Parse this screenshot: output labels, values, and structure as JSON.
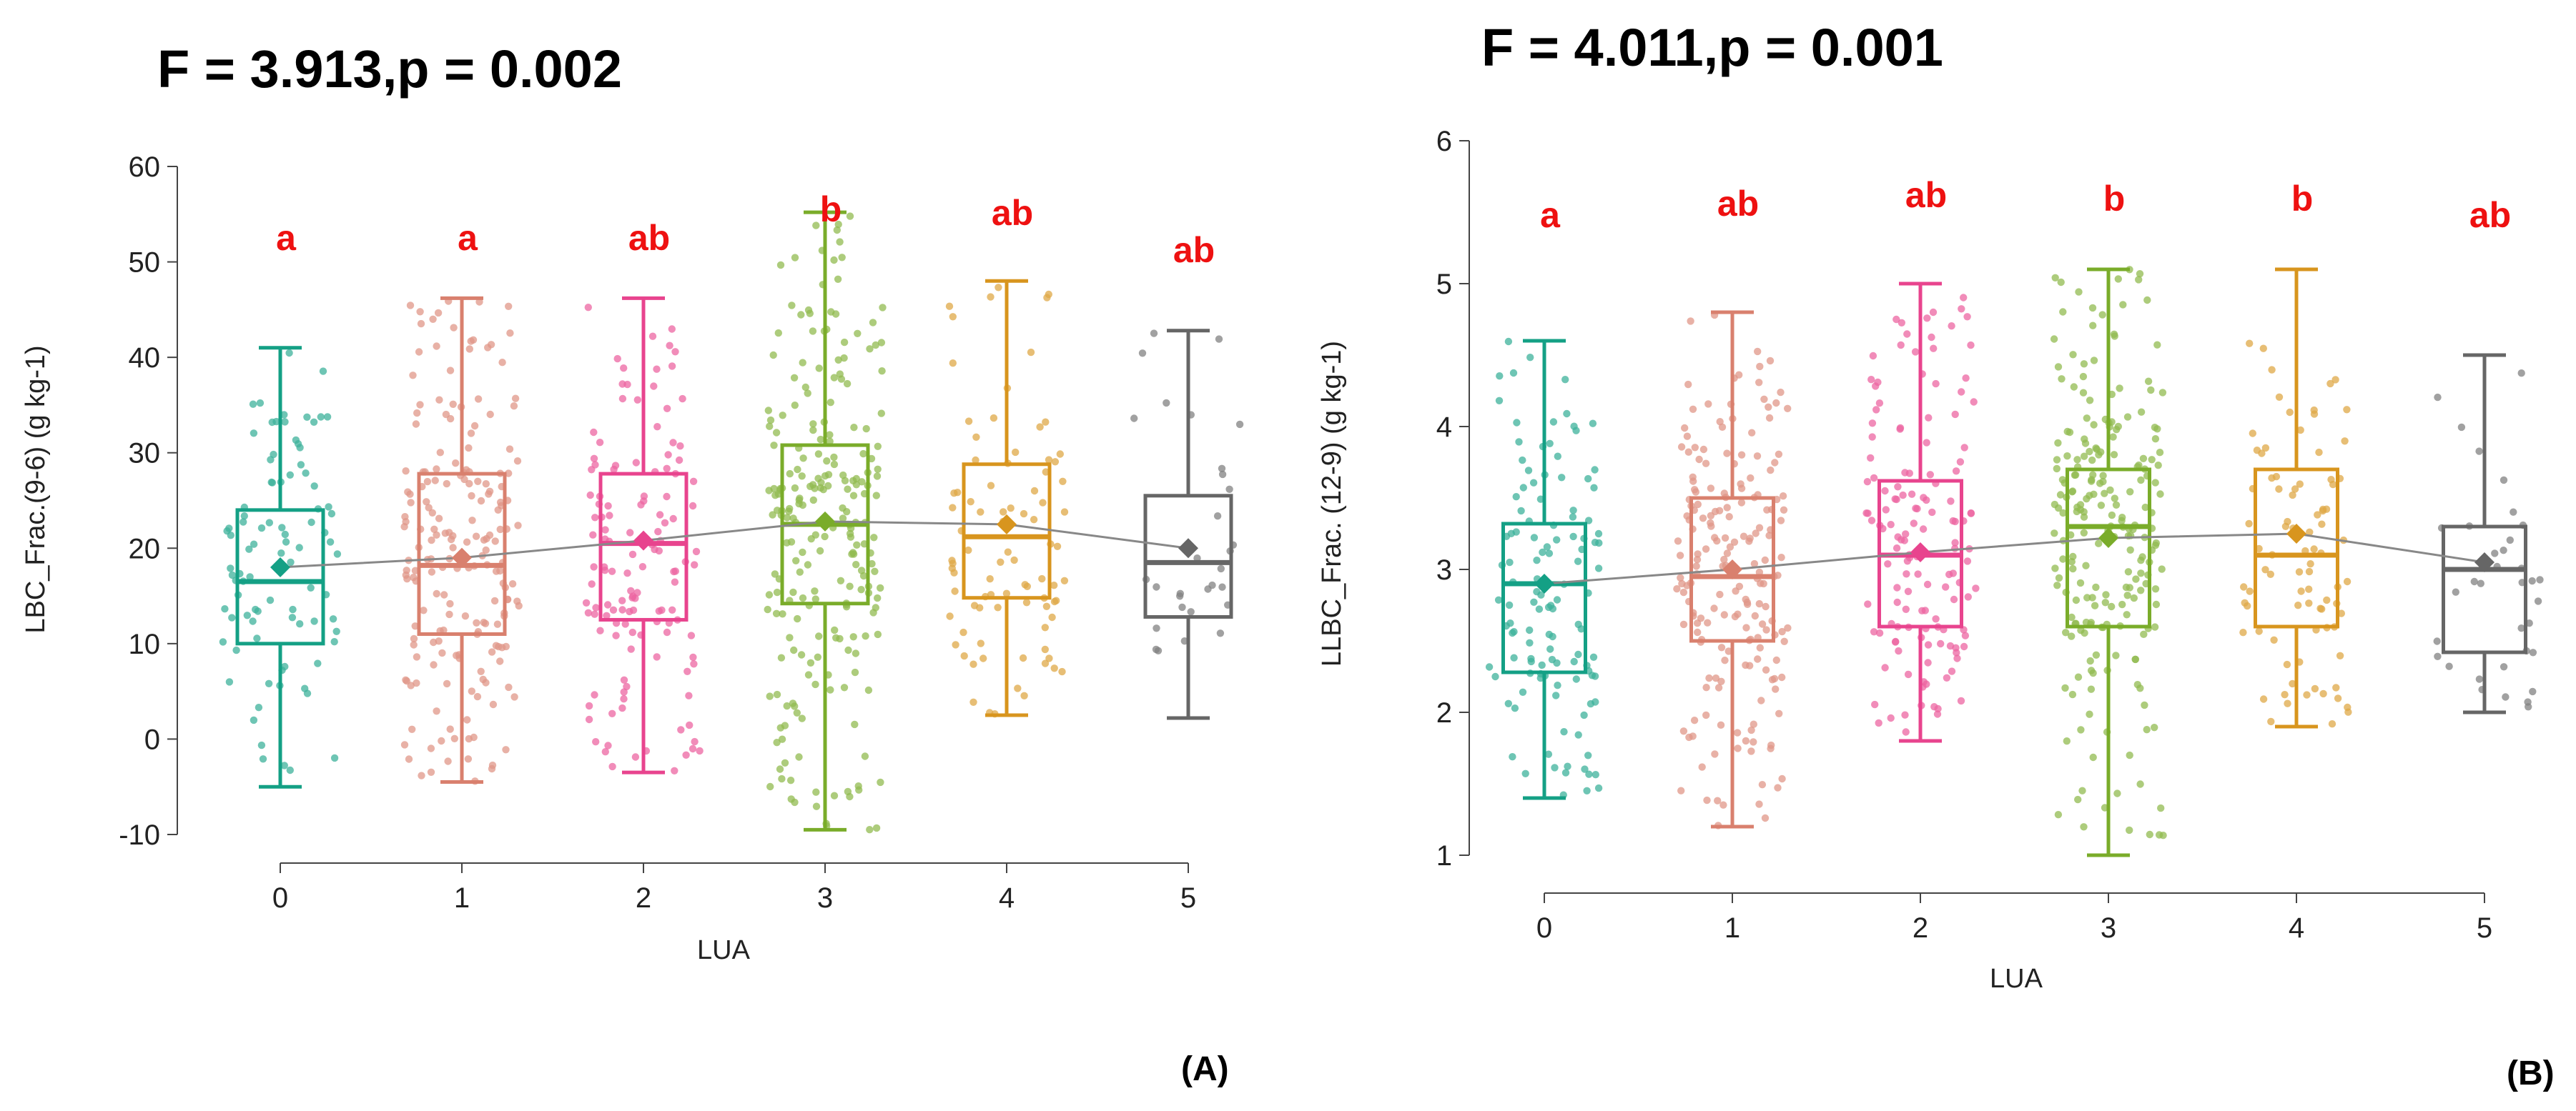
{
  "chart_data": [
    {
      "type": "box",
      "panel_label": "(A)",
      "title": "F = 3.913,p = 0.002",
      "xlabel": "LUA",
      "ylabel": "LBC_Frac.(9-6) (g kg-1)",
      "ylim": [
        -10,
        60
      ],
      "yticks": [
        "-10",
        "0",
        "10",
        "20",
        "30",
        "40",
        "50",
        "60"
      ],
      "ytick_values": [
        -10,
        0,
        10,
        20,
        30,
        40,
        50,
        60
      ],
      "categories": [
        "0",
        "1",
        "2",
        "3",
        "4",
        "5"
      ],
      "series": [
        {
          "name": "0",
          "color": "#14a085",
          "whisker_low": -5,
          "q1": 10,
          "median": 16.5,
          "q3": 24,
          "whisker_high": 41,
          "mean": 18,
          "letter": "a",
          "n_points": 90
        },
        {
          "name": "1",
          "color": "#d9806e",
          "whisker_low": -4.5,
          "q1": 11,
          "median": 18.2,
          "q3": 27.8,
          "whisker_high": 46.2,
          "mean": 19,
          "letter": "a",
          "n_points": 190
        },
        {
          "name": "2",
          "color": "#e8448e",
          "whisker_low": -3.5,
          "q1": 12.5,
          "median": 20.5,
          "q3": 27.8,
          "whisker_high": 46.2,
          "mean": 20.8,
          "letter": "ab",
          "n_points": 130
        },
        {
          "name": "3",
          "color": "#7aac2a",
          "whisker_low": -9.5,
          "q1": 14.2,
          "median": 22.5,
          "q3": 30.8,
          "whisker_high": 55.2,
          "mean": 22.8,
          "letter": "b",
          "n_points": 230
        },
        {
          "name": "4",
          "color": "#d8951e",
          "whisker_low": 2.5,
          "q1": 14.8,
          "median": 21.2,
          "q3": 28.8,
          "whisker_high": 48,
          "mean": 22.5,
          "letter": "ab",
          "n_points": 85
        },
        {
          "name": "5",
          "color": "#666666",
          "whisker_low": 2.2,
          "q1": 12.8,
          "median": 18.5,
          "q3": 25.5,
          "whisker_high": 42.8,
          "mean": 20,
          "letter": "ab",
          "n_points": 30
        }
      ],
      "mean_line_color": "#888888",
      "letter_color": "#ee1111"
    },
    {
      "type": "box",
      "panel_label": "(B)",
      "title": "F = 4.011,p = 0.001",
      "xlabel": "LUA",
      "ylabel": "LLBC_Frac. (12-9) (g kg-1)",
      "ylim": [
        1,
        6
      ],
      "yticks": [
        "1",
        "2",
        "3",
        "4",
        "5",
        "6"
      ],
      "ytick_values": [
        1,
        2,
        3,
        4,
        5,
        6
      ],
      "categories": [
        "0",
        "1",
        "2",
        "3",
        "4",
        "5"
      ],
      "series": [
        {
          "name": "0",
          "color": "#14a085",
          "whisker_low": 1.4,
          "q1": 2.28,
          "median": 2.9,
          "q3": 3.32,
          "whisker_high": 4.6,
          "mean": 2.9,
          "letter": "a",
          "n_points": 120
        },
        {
          "name": "1",
          "color": "#d9806e",
          "whisker_low": 1.2,
          "q1": 2.5,
          "median": 2.95,
          "q3": 3.5,
          "whisker_high": 4.8,
          "mean": 3.0,
          "letter": "ab",
          "n_points": 190
        },
        {
          "name": "2",
          "color": "#e8448e",
          "whisker_low": 1.8,
          "q1": 2.6,
          "median": 3.1,
          "q3": 3.62,
          "whisker_high": 5.0,
          "mean": 3.12,
          "letter": "ab",
          "n_points": 140
        },
        {
          "name": "3",
          "color": "#7aac2a",
          "whisker_low": 1.0,
          "q1": 2.6,
          "median": 3.3,
          "q3": 3.7,
          "whisker_high": 5.1,
          "mean": 3.22,
          "letter": "b",
          "n_points": 220
        },
        {
          "name": "4",
          "color": "#d8951e",
          "whisker_low": 1.9,
          "q1": 2.6,
          "median": 3.1,
          "q3": 3.7,
          "whisker_high": 5.1,
          "mean": 3.25,
          "letter": "b",
          "n_points": 85
        },
        {
          "name": "5",
          "color": "#666666",
          "whisker_low": 2.0,
          "q1": 2.42,
          "median": 3.0,
          "q3": 3.3,
          "whisker_high": 4.5,
          "mean": 3.05,
          "letter": "ab",
          "n_points": 35
        }
      ],
      "mean_line_color": "#888888",
      "letter_color": "#ee1111"
    }
  ]
}
